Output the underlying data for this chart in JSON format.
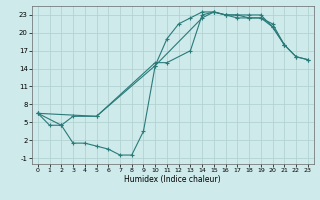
{
  "xlabel": "Humidex (Indice chaleur)",
  "bg_color": "#ceeaea",
  "grid_color": "#aed0d0",
  "line_color": "#2a7a7a",
  "xlim": [
    -0.5,
    23.5
  ],
  "ylim": [
    -2.0,
    24.5
  ],
  "xticks": [
    0,
    1,
    2,
    3,
    4,
    5,
    6,
    7,
    8,
    9,
    10,
    11,
    12,
    13,
    14,
    15,
    16,
    17,
    18,
    19,
    20,
    21,
    22,
    23
  ],
  "yticks": [
    -1,
    2,
    5,
    8,
    11,
    14,
    17,
    20,
    23
  ],
  "curve1_x": [
    0,
    1,
    2,
    3,
    4,
    5,
    6,
    7,
    8,
    9,
    10,
    11,
    12,
    13,
    14,
    15,
    16,
    17,
    18,
    19,
    20,
    21
  ],
  "curve1_y": [
    6.5,
    4.5,
    4.5,
    1.5,
    1.5,
    1.0,
    0.5,
    -0.5,
    -0.5,
    3.5,
    14.5,
    19.0,
    21.5,
    22.5,
    23.5,
    23.5,
    23.0,
    23.0,
    22.5,
    22.5,
    21.5,
    18.0
  ],
  "curve2_x": [
    0,
    2,
    3,
    5,
    10,
    11,
    13,
    14,
    15,
    16,
    17,
    18,
    19,
    20,
    21,
    22,
    23
  ],
  "curve2_y": [
    6.5,
    4.5,
    6.0,
    6.0,
    15.0,
    15.0,
    17.0,
    23.0,
    23.5,
    23.0,
    23.0,
    23.0,
    23.0,
    21.0,
    18.0,
    16.0,
    15.5
  ],
  "curve3_x": [
    0,
    5,
    10,
    14,
    15,
    16,
    17,
    18,
    19,
    20,
    21,
    22,
    23
  ],
  "curve3_y": [
    6.5,
    6.0,
    14.5,
    22.5,
    23.5,
    23.0,
    22.5,
    22.5,
    22.5,
    21.0,
    18.0,
    16.0,
    15.5
  ]
}
